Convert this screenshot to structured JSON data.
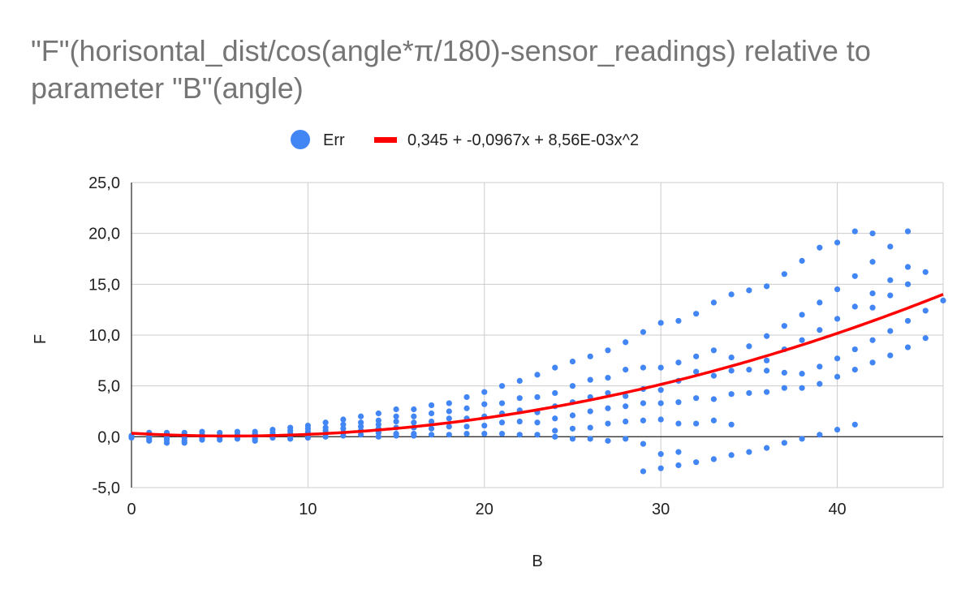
{
  "chart_data": {
    "type": "scatter",
    "title": "\"F\"(horisontal_dist/cos(angle*π/180)-sensor_readings) relative to parameter \"B\"(angle)",
    "xlabel": "B",
    "ylabel": "F",
    "xlim": [
      0,
      46
    ],
    "ylim": [
      -5,
      25
    ],
    "xticks": [
      0,
      10,
      20,
      30,
      40
    ],
    "xtick_labels": [
      "0",
      "10",
      "20",
      "30",
      "40"
    ],
    "yticks": [
      -5,
      0,
      5,
      10,
      15,
      20,
      25
    ],
    "ytick_labels": [
      "-5,0",
      "0,0",
      "5,0",
      "10,0",
      "15,0",
      "20,0",
      "25,0"
    ],
    "grid": true,
    "legend_position": "top-center",
    "series": [
      {
        "name": "Err",
        "type": "scatter",
        "color": "#4285f4",
        "points": [
          [
            0,
            0.0
          ],
          [
            0,
            0.1
          ],
          [
            0,
            -0.1
          ],
          [
            1,
            0.4
          ],
          [
            1,
            0.2
          ],
          [
            1,
            0.0
          ],
          [
            1,
            -0.2
          ],
          [
            1,
            -0.4
          ],
          [
            2,
            0.4
          ],
          [
            2,
            0.1
          ],
          [
            2,
            -0.1
          ],
          [
            2,
            -0.3
          ],
          [
            2,
            -0.6
          ],
          [
            3,
            0.4
          ],
          [
            3,
            0.1
          ],
          [
            3,
            -0.1
          ],
          [
            3,
            -0.4
          ],
          [
            3,
            -0.6
          ],
          [
            4,
            0.5
          ],
          [
            4,
            0.2
          ],
          [
            4,
            -0.1
          ],
          [
            4,
            -0.3
          ],
          [
            5,
            0.4
          ],
          [
            5,
            0.1
          ],
          [
            5,
            -0.1
          ],
          [
            5,
            -0.3
          ],
          [
            6,
            0.5
          ],
          [
            6,
            0.2
          ],
          [
            6,
            0.0
          ],
          [
            6,
            -0.2
          ],
          [
            7,
            0.5
          ],
          [
            7,
            0.3
          ],
          [
            7,
            0.0
          ],
          [
            7,
            -0.2
          ],
          [
            7,
            -0.4
          ],
          [
            8,
            0.7
          ],
          [
            8,
            0.4
          ],
          [
            8,
            0.1
          ],
          [
            8,
            -0.1
          ],
          [
            9,
            0.9
          ],
          [
            9,
            0.6
          ],
          [
            9,
            0.3
          ],
          [
            9,
            0.0
          ],
          [
            9,
            -0.2
          ],
          [
            10,
            1.1
          ],
          [
            10,
            0.8
          ],
          [
            10,
            0.5
          ],
          [
            10,
            0.2
          ],
          [
            10,
            -0.1
          ],
          [
            11,
            1.4
          ],
          [
            11,
            0.9
          ],
          [
            11,
            0.6
          ],
          [
            11,
            0.3
          ],
          [
            11,
            0.0
          ],
          [
            12,
            1.7
          ],
          [
            12,
            1.2
          ],
          [
            12,
            0.8
          ],
          [
            12,
            0.4
          ],
          [
            12,
            0.1
          ],
          [
            13,
            2.0
          ],
          [
            13,
            1.4
          ],
          [
            13,
            1.0
          ],
          [
            13,
            0.6
          ],
          [
            13,
            0.2
          ],
          [
            14,
            2.3
          ],
          [
            14,
            1.6
          ],
          [
            14,
            1.2
          ],
          [
            14,
            0.8
          ],
          [
            14,
            0.4
          ],
          [
            14,
            0.0
          ],
          [
            15,
            2.7
          ],
          [
            15,
            2.0
          ],
          [
            15,
            1.5
          ],
          [
            15,
            0.9
          ],
          [
            15,
            0.3
          ],
          [
            15,
            0.1
          ],
          [
            16,
            2.7
          ],
          [
            16,
            2.0
          ],
          [
            16,
            1.4
          ],
          [
            16,
            0.9
          ],
          [
            16,
            0.3
          ],
          [
            16,
            0.1
          ],
          [
            17,
            3.1
          ],
          [
            17,
            2.3
          ],
          [
            17,
            1.5
          ],
          [
            17,
            0.8
          ],
          [
            17,
            0.2
          ],
          [
            18,
            3.3
          ],
          [
            18,
            2.5
          ],
          [
            18,
            1.8
          ],
          [
            18,
            1.0
          ],
          [
            18,
            0.2
          ],
          [
            19,
            3.9
          ],
          [
            19,
            2.8
          ],
          [
            19,
            1.8
          ],
          [
            19,
            1.0
          ],
          [
            19,
            0.3
          ],
          [
            20,
            4.4
          ],
          [
            20,
            3.2
          ],
          [
            20,
            2.0
          ],
          [
            20,
            1.1
          ],
          [
            20,
            0.3
          ],
          [
            21,
            5.0
          ],
          [
            21,
            3.3
          ],
          [
            21,
            2.3
          ],
          [
            21,
            1.4
          ],
          [
            21,
            0.3
          ],
          [
            22,
            5.5
          ],
          [
            22,
            3.8
          ],
          [
            22,
            2.6
          ],
          [
            22,
            1.5
          ],
          [
            22,
            0.2
          ],
          [
            23,
            6.1
          ],
          [
            23,
            3.9
          ],
          [
            23,
            2.4
          ],
          [
            23,
            1.4
          ],
          [
            23,
            0.2
          ],
          [
            24,
            6.8
          ],
          [
            24,
            4.3
          ],
          [
            24,
            3.0
          ],
          [
            24,
            1.8
          ],
          [
            24,
            0.6
          ],
          [
            24,
            0.0
          ],
          [
            25,
            7.4
          ],
          [
            25,
            5.0
          ],
          [
            25,
            3.4
          ],
          [
            25,
            2.1
          ],
          [
            25,
            0.8
          ],
          [
            25,
            -0.2
          ],
          [
            26,
            7.9
          ],
          [
            26,
            5.6
          ],
          [
            26,
            3.9
          ],
          [
            26,
            2.5
          ],
          [
            26,
            0.9
          ],
          [
            26,
            -0.2
          ],
          [
            27,
            8.5
          ],
          [
            27,
            5.8
          ],
          [
            27,
            4.3
          ],
          [
            27,
            2.8
          ],
          [
            27,
            1.3
          ],
          [
            27,
            -0.4
          ],
          [
            28,
            9.3
          ],
          [
            28,
            6.6
          ],
          [
            28,
            4.0
          ],
          [
            28,
            3.0
          ],
          [
            28,
            1.5
          ],
          [
            28,
            -0.2
          ],
          [
            29,
            10.3
          ],
          [
            29,
            6.8
          ],
          [
            29,
            4.7
          ],
          [
            29,
            3.3
          ],
          [
            29,
            1.6
          ],
          [
            29,
            -0.7
          ],
          [
            29,
            -3.4
          ],
          [
            30,
            11.2
          ],
          [
            30,
            6.8
          ],
          [
            30,
            4.6
          ],
          [
            30,
            3.3
          ],
          [
            30,
            1.7
          ],
          [
            30,
            -1.7
          ],
          [
            30,
            -3.1
          ],
          [
            31,
            11.4
          ],
          [
            31,
            7.3
          ],
          [
            31,
            5.5
          ],
          [
            31,
            3.4
          ],
          [
            31,
            1.3
          ],
          [
            31,
            -1.5
          ],
          [
            31,
            -2.8
          ],
          [
            32,
            12.1
          ],
          [
            32,
            7.9
          ],
          [
            32,
            6.4
          ],
          [
            32,
            3.8
          ],
          [
            32,
            1.3
          ],
          [
            32,
            -2.5
          ],
          [
            33,
            13.2
          ],
          [
            33,
            8.5
          ],
          [
            33,
            6.0
          ],
          [
            33,
            3.7
          ],
          [
            33,
            1.6
          ],
          [
            33,
            -2.2
          ],
          [
            34,
            14.0
          ],
          [
            34,
            7.8
          ],
          [
            34,
            6.5
          ],
          [
            34,
            4.2
          ],
          [
            34,
            1.2
          ],
          [
            34,
            -1.8
          ],
          [
            35,
            14.4
          ],
          [
            35,
            8.9
          ],
          [
            35,
            6.6
          ],
          [
            35,
            4.3
          ],
          [
            35,
            -1.5
          ],
          [
            36,
            14.8
          ],
          [
            36,
            9.9
          ],
          [
            36,
            7.5
          ],
          [
            36,
            6.5
          ],
          [
            36,
            4.4
          ],
          [
            36,
            -1.1
          ],
          [
            37,
            16.0
          ],
          [
            37,
            10.9
          ],
          [
            37,
            8.6
          ],
          [
            37,
            6.3
          ],
          [
            37,
            4.8
          ],
          [
            37,
            -0.6
          ],
          [
            38,
            17.3
          ],
          [
            38,
            12.0
          ],
          [
            38,
            9.5
          ],
          [
            38,
            6.2
          ],
          [
            38,
            4.8
          ],
          [
            38,
            -0.2
          ],
          [
            39,
            18.6
          ],
          [
            39,
            13.2
          ],
          [
            39,
            10.5
          ],
          [
            39,
            6.9
          ],
          [
            39,
            5.2
          ],
          [
            39,
            0.2
          ],
          [
            40,
            19.1
          ],
          [
            40,
            14.5
          ],
          [
            40,
            11.6
          ],
          [
            40,
            7.7
          ],
          [
            40,
            5.9
          ],
          [
            40,
            0.7
          ],
          [
            41,
            20.2
          ],
          [
            41,
            15.8
          ],
          [
            41,
            12.8
          ],
          [
            41,
            8.6
          ],
          [
            41,
            6.6
          ],
          [
            41,
            1.2
          ],
          [
            42,
            20.0
          ],
          [
            42,
            17.2
          ],
          [
            42,
            14.1
          ],
          [
            42,
            12.7
          ],
          [
            42,
            9.5
          ],
          [
            42,
            7.3
          ],
          [
            43,
            18.7
          ],
          [
            43,
            15.4
          ],
          [
            43,
            13.9
          ],
          [
            43,
            10.4
          ],
          [
            43,
            8.0
          ],
          [
            44,
            20.2
          ],
          [
            44,
            16.7
          ],
          [
            44,
            15.0
          ],
          [
            44,
            11.4
          ],
          [
            44,
            8.8
          ],
          [
            45,
            16.2
          ],
          [
            45,
            12.4
          ],
          [
            45,
            9.7
          ],
          [
            46,
            13.4
          ]
        ]
      },
      {
        "name": "0,345 + -0,0967x + 8,56E-03x^2",
        "type": "trendline",
        "color": "#ff0000",
        "coefficients": [
          0.345,
          -0.0967,
          0.00856
        ]
      }
    ]
  }
}
